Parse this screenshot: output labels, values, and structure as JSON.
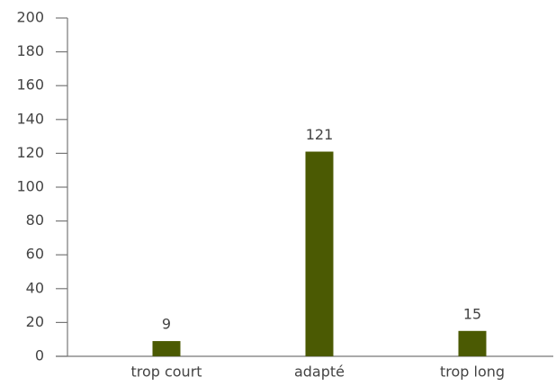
{
  "chart_data": {
    "type": "bar",
    "categories": [
      "trop court",
      "adapté",
      "trop long"
    ],
    "values": [
      9,
      121,
      15
    ],
    "color": "#4b5a03",
    "ylim": [
      0,
      200
    ],
    "yticks": [
      0,
      20,
      40,
      60,
      80,
      100,
      120,
      140,
      160,
      180,
      200
    ],
    "grid": false
  }
}
